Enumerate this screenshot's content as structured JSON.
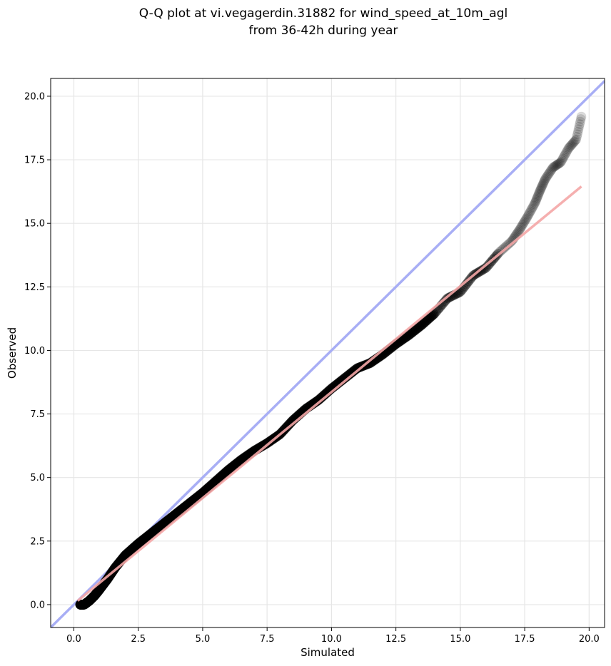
{
  "chart_data": {
    "type": "scatter",
    "title_line1": "Q-Q plot at vi.vegagerdin.31882 for wind_speed_at_10m_agl",
    "title_line2": "from 36-42h during year",
    "xlabel": "Simulated",
    "ylabel": "Observed",
    "xlim": [
      -0.9,
      20.6
    ],
    "ylim": [
      -0.9,
      20.7
    ],
    "xticks": [
      0.0,
      2.5,
      5.0,
      7.5,
      10.0,
      12.5,
      15.0,
      17.5,
      20.0
    ],
    "xtick_labels": [
      "0.0",
      "2.5",
      "5.0",
      "7.5",
      "10.0",
      "12.5",
      "15.0",
      "17.5",
      "20.0"
    ],
    "yticks": [
      0.0,
      2.5,
      5.0,
      7.5,
      10.0,
      12.5,
      15.0,
      17.5,
      20.0
    ],
    "ytick_labels": [
      "0.0",
      "2.5",
      "5.0",
      "7.5",
      "10.0",
      "12.5",
      "15.0",
      "17.5",
      "20.0"
    ],
    "grid": true,
    "reference_line": {
      "from": [
        -0.9,
        -0.9
      ],
      "to": [
        20.6,
        20.6
      ],
      "color": "#a8aef5"
    },
    "fit_line": {
      "from": [
        0.15,
        0.15
      ],
      "to": [
        19.7,
        16.45
      ],
      "color": "#f4a6a6"
    },
    "quantile_curve": [
      [
        0.25,
        0.0
      ],
      [
        0.4,
        0.0
      ],
      [
        0.6,
        0.15
      ],
      [
        0.8,
        0.35
      ],
      [
        1.0,
        0.6
      ],
      [
        1.3,
        1.0
      ],
      [
        1.6,
        1.45
      ],
      [
        2.0,
        1.95
      ],
      [
        2.5,
        2.4
      ],
      [
        3.0,
        2.8
      ],
      [
        3.5,
        3.2
      ],
      [
        4.0,
        3.6
      ],
      [
        4.5,
        4.0
      ],
      [
        5.0,
        4.4
      ],
      [
        5.5,
        4.85
      ],
      [
        6.0,
        5.3
      ],
      [
        6.5,
        5.7
      ],
      [
        7.0,
        6.05
      ],
      [
        7.5,
        6.35
      ],
      [
        8.0,
        6.7
      ],
      [
        8.5,
        7.25
      ],
      [
        9.0,
        7.7
      ],
      [
        9.5,
        8.05
      ],
      [
        10.0,
        8.5
      ],
      [
        10.5,
        8.9
      ],
      [
        11.0,
        9.3
      ],
      [
        11.5,
        9.5
      ],
      [
        12.0,
        9.85
      ],
      [
        12.5,
        10.25
      ],
      [
        13.0,
        10.6
      ],
      [
        13.5,
        11.0
      ],
      [
        14.0,
        11.45
      ],
      [
        14.5,
        12.05
      ],
      [
        15.0,
        12.3
      ],
      [
        15.5,
        12.95
      ],
      [
        16.0,
        13.25
      ],
      [
        16.5,
        13.85
      ],
      [
        17.0,
        14.3
      ],
      [
        17.3,
        14.75
      ],
      [
        17.6,
        15.25
      ],
      [
        17.9,
        15.8
      ],
      [
        18.1,
        16.3
      ],
      [
        18.3,
        16.75
      ],
      [
        18.6,
        17.2
      ],
      [
        18.9,
        17.4
      ],
      [
        19.2,
        17.95
      ],
      [
        19.5,
        18.3
      ],
      [
        19.7,
        19.2
      ]
    ],
    "points_count": 680,
    "point_color": "#000000"
  }
}
